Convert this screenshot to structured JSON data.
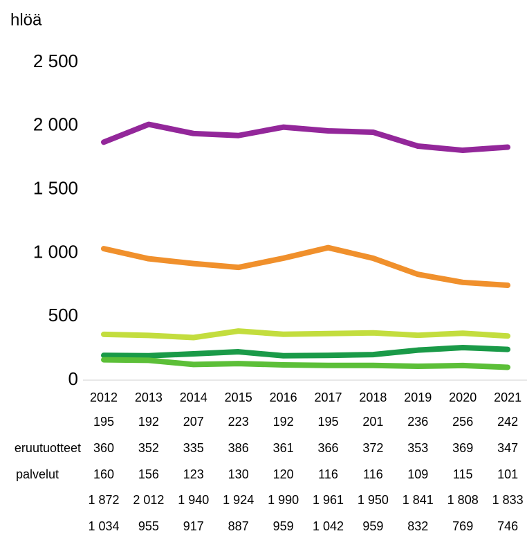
{
  "chart_data": {
    "type": "line",
    "y_label": "hlöä",
    "categories": [
      "2012",
      "2013",
      "2014",
      "2015",
      "2016",
      "2017",
      "2018",
      "2019",
      "2020",
      "2021"
    ],
    "series": [
      {
        "name": null,
        "color": "#1a9a48",
        "values": [
          195,
          192,
          207,
          223,
          192,
          195,
          201,
          236,
          256,
          242
        ]
      },
      {
        "name": "eruutuotteet",
        "color": "#c3dd3e",
        "values": [
          360,
          352,
          335,
          386,
          361,
          366,
          372,
          353,
          369,
          347
        ]
      },
      {
        "name": "palvelut",
        "color": "#5cbf38",
        "values": [
          160,
          156,
          123,
          130,
          120,
          116,
          116,
          109,
          115,
          101
        ]
      },
      {
        "name": null,
        "color": "#93279a",
        "values": [
          1872,
          2012,
          1940,
          1924,
          1990,
          1961,
          1950,
          1841,
          1808,
          1833
        ],
        "value_labels": [
          "1 872",
          "2 012",
          "1 940",
          "1 924",
          "1 990",
          "1 961",
          "1 950",
          "1 841",
          "1 808",
          "1 833"
        ]
      },
      {
        "name": null,
        "color": "#f0902c",
        "values": [
          1034,
          955,
          917,
          887,
          959,
          1042,
          959,
          832,
          769,
          746
        ],
        "value_labels": [
          "1 034",
          "955",
          "917",
          "887",
          "959",
          "1 042",
          "959",
          "832",
          "769",
          "746"
        ]
      }
    ],
    "ylim": [
      0,
      2500
    ],
    "yticks": [
      0,
      500,
      {
        "value": 1000,
        "label": "1 000"
      },
      {
        "value": 1500,
        "label": "1 500"
      },
      {
        "value": 2000,
        "label": "2 000"
      },
      {
        "value": 2500,
        "label": "2 500"
      }
    ]
  }
}
